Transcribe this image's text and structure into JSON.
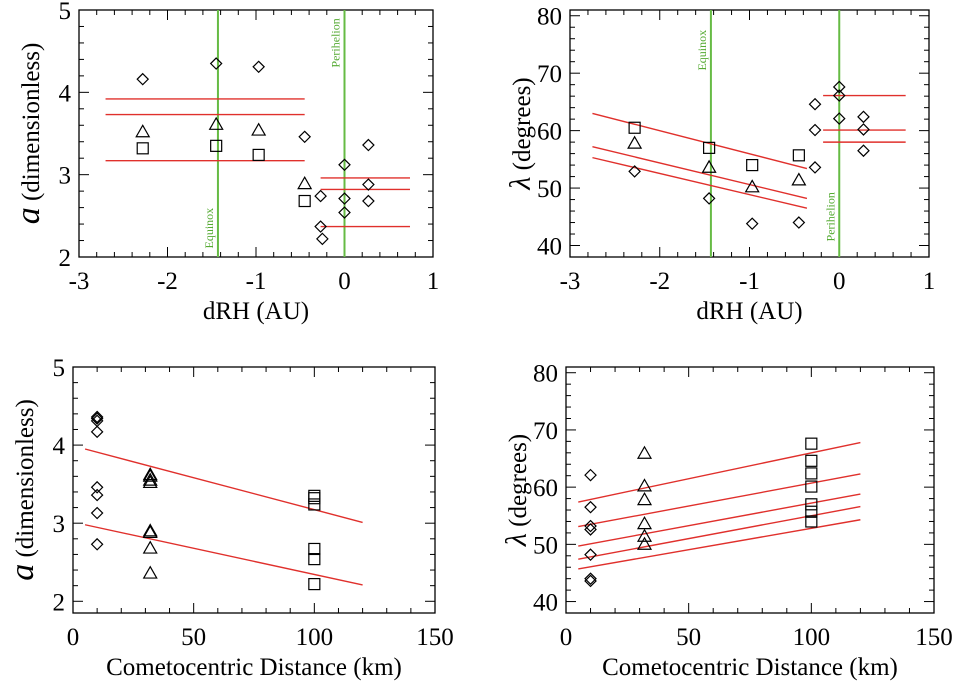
{
  "colors": {
    "axis": "#000000",
    "fit_line": "#e0302c",
    "marker_line": "#66bb44",
    "marker_text": "#55aa33",
    "symbol": "#000000"
  },
  "chart_data": [
    {
      "id": "top-left",
      "type": "scatter",
      "xlabel": "dRH (AU)",
      "ylabel_italic": "a",
      "ylabel_rest": " (dimensionless)",
      "xlim": [
        -3,
        1
      ],
      "ylim": [
        2,
        5
      ],
      "xticks": [
        -3,
        -2,
        -1,
        0,
        1
      ],
      "yticks": [
        2,
        3,
        4,
        5
      ],
      "vlines": [
        {
          "x": -1.43,
          "label": "Equinox",
          "ypos": 2.35
        },
        {
          "x": 0.0,
          "label": "Perihelion",
          "ypos": 4.6
        }
      ],
      "series": [
        {
          "symbol": "diamond",
          "points": [
            [
              -2.28,
              4.16
            ],
            [
              -1.45,
              4.35
            ],
            [
              -0.97,
              4.31
            ],
            [
              -0.45,
              3.46
            ],
            [
              -0.27,
              2.74
            ],
            [
              -0.27,
              2.37
            ],
            [
              -0.25,
              2.22
            ],
            [
              0.0,
              3.12
            ],
            [
              0.0,
              2.71
            ],
            [
              0.0,
              2.54
            ],
            [
              0.27,
              3.36
            ],
            [
              0.27,
              2.88
            ],
            [
              0.27,
              2.68
            ]
          ]
        },
        {
          "symbol": "triangle",
          "points": [
            [
              -2.28,
              3.52
            ],
            [
              -1.45,
              3.61
            ],
            [
              -0.97,
              3.54
            ],
            [
              -0.45,
              2.89
            ]
          ]
        },
        {
          "symbol": "square",
          "points": [
            [
              -2.28,
              3.32
            ],
            [
              -1.45,
              3.35
            ],
            [
              -0.97,
              3.24
            ],
            [
              -0.45,
              2.68
            ]
          ]
        }
      ],
      "lines": [
        [
          [
            -2.7,
            3.92
          ],
          [
            -0.45,
            3.92
          ]
        ],
        [
          [
            -2.7,
            3.73
          ],
          [
            -0.45,
            3.73
          ]
        ],
        [
          [
            -2.7,
            3.17
          ],
          [
            -0.45,
            3.17
          ]
        ],
        [
          [
            -0.27,
            2.96
          ],
          [
            0.74,
            2.96
          ]
        ],
        [
          [
            -0.27,
            2.82
          ],
          [
            0.74,
            2.82
          ]
        ],
        [
          [
            -0.27,
            2.37
          ],
          [
            0.74,
            2.37
          ]
        ]
      ]
    },
    {
      "id": "top-right",
      "type": "scatter",
      "xlabel": "dRH (AU)",
      "ylabel_italic": "λ",
      "ylabel_rest": " (degrees)",
      "xlim": [
        -3,
        1
      ],
      "ylim": [
        38,
        81
      ],
      "xticks": [
        -3,
        -2,
        -1,
        0,
        1
      ],
      "yticks": [
        40,
        50,
        60,
        70,
        80
      ],
      "vlines": [
        {
          "x": -1.43,
          "label": "Equinox",
          "ypos": 74
        },
        {
          "x": 0.0,
          "label": "Perihelion",
          "ypos": 45
        }
      ],
      "series": [
        {
          "symbol": "diamond",
          "points": [
            [
              -2.28,
              52.9
            ],
            [
              -1.45,
              48.2
            ],
            [
              -0.97,
              43.8
            ],
            [
              -0.45,
              44.0
            ],
            [
              -0.27,
              64.6
            ],
            [
              -0.27,
              60.1
            ],
            [
              -0.27,
              53.6
            ],
            [
              0.0,
              67.6
            ],
            [
              0.0,
              66.1
            ],
            [
              0.0,
              62.1
            ],
            [
              0.27,
              62.4
            ],
            [
              0.27,
              60.2
            ],
            [
              0.27,
              56.5
            ]
          ]
        },
        {
          "symbol": "triangle",
          "points": [
            [
              -2.28,
              57.8
            ],
            [
              -1.45,
              53.6
            ],
            [
              -0.97,
              50.2
            ],
            [
              -0.45,
              51.4
            ]
          ]
        },
        {
          "symbol": "square",
          "points": [
            [
              -2.28,
              60.5
            ],
            [
              -1.45,
              57.0
            ],
            [
              -0.97,
              54.0
            ],
            [
              -0.45,
              55.7
            ]
          ]
        }
      ],
      "lines": [
        [
          [
            -2.75,
            63.0
          ],
          [
            -0.36,
            53.4
          ]
        ],
        [
          [
            -2.75,
            57.2
          ],
          [
            -0.36,
            48.2
          ]
        ],
        [
          [
            -2.75,
            55.3
          ],
          [
            -0.36,
            46.5
          ]
        ],
        [
          [
            -0.18,
            66.1
          ],
          [
            0.74,
            66.1
          ]
        ],
        [
          [
            -0.18,
            60.1
          ],
          [
            0.74,
            60.1
          ]
        ],
        [
          [
            -0.18,
            58.0
          ],
          [
            0.74,
            58.0
          ]
        ]
      ]
    },
    {
      "id": "bottom-left",
      "type": "scatter",
      "xlabel": "Cometocentric Distance (km)",
      "ylabel_italic": "a",
      "ylabel_rest": " (dimensionless)",
      "xlim": [
        0,
        150
      ],
      "ylim": [
        1.85,
        5
      ],
      "xticks": [
        0,
        50,
        100,
        150
      ],
      "yticks": [
        2,
        3,
        4,
        5
      ],
      "vlines": [],
      "series": [
        {
          "symbol": "diamond",
          "points": [
            [
              10,
              4.36
            ],
            [
              10,
              4.34
            ],
            [
              10,
              4.31
            ],
            [
              10,
              4.17
            ],
            [
              10,
              3.46
            ],
            [
              10,
              3.36
            ],
            [
              10,
              3.13
            ],
            [
              10,
              2.73
            ]
          ]
        },
        {
          "symbol": "triangle",
          "points": [
            [
              32,
              3.62
            ],
            [
              32,
              3.6
            ],
            [
              32,
              3.55
            ],
            [
              32,
              3.52
            ],
            [
              32,
              2.9
            ],
            [
              32,
              2.88
            ],
            [
              32,
              2.68
            ],
            [
              32,
              2.36
            ]
          ]
        },
        {
          "symbol": "square",
          "points": [
            [
              100,
              3.35
            ],
            [
              100,
              3.32
            ],
            [
              100,
              3.24
            ],
            [
              100,
              2.67
            ],
            [
              100,
              2.54
            ],
            [
              100,
              2.22
            ]
          ]
        }
      ],
      "lines": [
        [
          [
            5,
            3.95
          ],
          [
            120,
            3.01
          ]
        ],
        [
          [
            5,
            2.98
          ],
          [
            120,
            2.21
          ]
        ]
      ]
    },
    {
      "id": "bottom-right",
      "type": "scatter",
      "xlabel": "Cometocentric Distance (km)",
      "ylabel_italic": "λ",
      "ylabel_rest": " (degrees)",
      "xlim": [
        0,
        150
      ],
      "ylim": [
        38,
        81
      ],
      "xticks": [
        0,
        50,
        100,
        150
      ],
      "yticks": [
        40,
        50,
        60,
        70,
        80
      ],
      "vlines": [],
      "series": [
        {
          "symbol": "diamond",
          "points": [
            [
              10,
              62.1
            ],
            [
              10,
              56.5
            ],
            [
              10,
              53.2
            ],
            [
              10,
              52.6
            ],
            [
              10,
              48.2
            ],
            [
              10,
              44.0
            ],
            [
              10,
              43.6
            ]
          ]
        },
        {
          "symbol": "triangle",
          "points": [
            [
              32,
              65.9
            ],
            [
              32,
              60.2
            ],
            [
              32,
              57.8
            ],
            [
              32,
              53.6
            ],
            [
              32,
              51.4
            ],
            [
              32,
              50.0
            ]
          ]
        },
        {
          "symbol": "square",
          "points": [
            [
              100,
              67.6
            ],
            [
              100,
              64.6
            ],
            [
              100,
              62.4
            ],
            [
              100,
              60.1
            ],
            [
              100,
              57.0
            ],
            [
              100,
              55.7
            ],
            [
              100,
              54.0
            ]
          ]
        }
      ],
      "lines": [
        [
          [
            5,
            57.4
          ],
          [
            120,
            67.8
          ]
        ],
        [
          [
            5,
            53.1
          ],
          [
            120,
            62.3
          ]
        ],
        [
          [
            5,
            49.7
          ],
          [
            120,
            58.8
          ]
        ],
        [
          [
            5,
            47.4
          ],
          [
            120,
            56.6
          ]
        ],
        [
          [
            5,
            45.7
          ],
          [
            120,
            54.3
          ]
        ]
      ]
    }
  ]
}
